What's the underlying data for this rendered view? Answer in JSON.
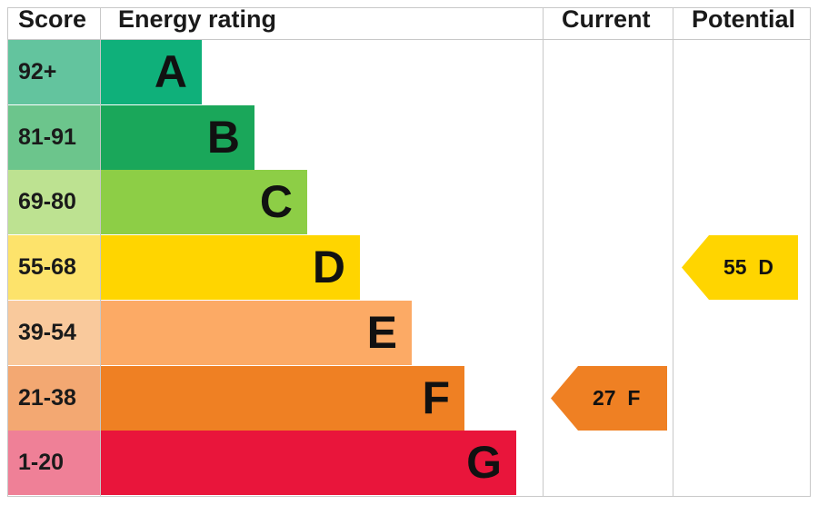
{
  "chart_data": {
    "type": "table",
    "headers": {
      "score": "Score",
      "energy_rating": "Energy rating",
      "current": "Current",
      "potential": "Potential"
    },
    "bands": [
      {
        "range": "92+",
        "letter": "A",
        "color": "#0fb07a",
        "score_color": "#63c49e"
      },
      {
        "range": "81-91",
        "letter": "B",
        "color": "#1aa75a",
        "score_color": "#6cc58c"
      },
      {
        "range": "69-80",
        "letter": "C",
        "color": "#8dce46",
        "score_color": "#bde291"
      },
      {
        "range": "55-68",
        "letter": "D",
        "color": "#ffd500",
        "score_color": "#fde36b"
      },
      {
        "range": "39-54",
        "letter": "E",
        "color": "#fcaa65",
        "score_color": "#f9c99c"
      },
      {
        "range": "21-38",
        "letter": "F",
        "color": "#ef8023",
        "score_color": "#f3a872"
      },
      {
        "range": "1-20",
        "letter": "G",
        "color": "#e9153b",
        "score_color": "#ef8097"
      }
    ],
    "current": {
      "value": 27,
      "band": "F",
      "label": "27  F",
      "color": "#ef8023"
    },
    "potential": {
      "value": 55,
      "band": "D",
      "label": "55  D",
      "color": "#ffd500"
    }
  }
}
